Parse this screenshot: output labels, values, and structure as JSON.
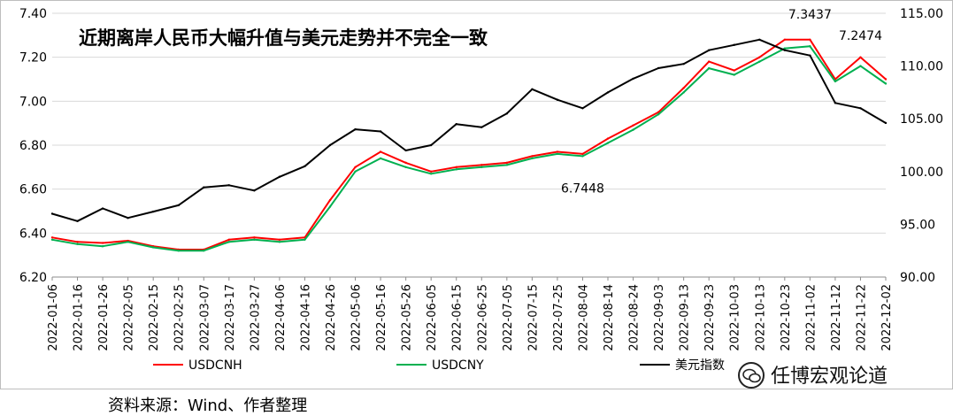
{
  "chart_data": {
    "type": "line",
    "title": "近期离岸人民币大幅升值与美元走势并不完全一致",
    "xlabel": "",
    "ylabel": "",
    "left_axis": {
      "ylim": [
        6.2,
        7.4
      ],
      "ticks": [
        "6.20",
        "6.40",
        "6.60",
        "6.80",
        "7.00",
        "7.20",
        "7.40"
      ]
    },
    "right_axis": {
      "ylim": [
        90,
        115
      ],
      "ticks": [
        "90.00",
        "95.00",
        "100.00",
        "105.00",
        "110.00",
        "115.00"
      ]
    },
    "grid": true,
    "legend_position": "bottom",
    "categories": [
      "2022-01-06",
      "2022-01-16",
      "2022-01-26",
      "2022-02-05",
      "2022-02-15",
      "2022-02-25",
      "2022-03-07",
      "2022-03-17",
      "2022-03-27",
      "2022-04-06",
      "2022-04-16",
      "2022-04-26",
      "2022-05-06",
      "2022-05-16",
      "2022-05-26",
      "2022-06-05",
      "2022-06-15",
      "2022-06-25",
      "2022-07-05",
      "2022-07-15",
      "2022-07-25",
      "2022-08-04",
      "2022-08-14",
      "2022-08-24",
      "2022-09-03",
      "2022-09-13",
      "2022-09-23",
      "2022-10-03",
      "2022-10-13",
      "2022-10-23",
      "2022-11-02",
      "2022-11-12",
      "2022-11-22",
      "2022-12-02"
    ],
    "series": [
      {
        "name": "USDCNH",
        "color": "#ff0000",
        "axis": "left",
        "values": [
          6.38,
          6.36,
          6.355,
          6.365,
          6.34,
          6.325,
          6.325,
          6.37,
          6.38,
          6.37,
          6.38,
          6.55,
          6.7,
          6.77,
          6.72,
          6.68,
          6.7,
          6.71,
          6.72,
          6.75,
          6.77,
          6.76,
          6.83,
          6.89,
          6.95,
          7.06,
          7.18,
          7.14,
          7.2,
          7.28,
          7.28,
          7.1,
          7.2,
          7.1
        ]
      },
      {
        "name": "USDCNY",
        "color": "#00b050",
        "axis": "left",
        "values": [
          6.37,
          6.35,
          6.34,
          6.36,
          6.335,
          6.32,
          6.32,
          6.36,
          6.37,
          6.36,
          6.37,
          6.52,
          6.68,
          6.74,
          6.7,
          6.67,
          6.69,
          6.7,
          6.71,
          6.74,
          6.76,
          6.75,
          6.81,
          6.87,
          6.94,
          7.04,
          7.15,
          7.12,
          7.18,
          7.24,
          7.25,
          7.09,
          7.16,
          7.08
        ]
      },
      {
        "name": "美元指数",
        "color": "#000000",
        "axis": "right",
        "values": [
          96.0,
          95.3,
          96.5,
          95.6,
          96.2,
          96.8,
          98.5,
          98.7,
          98.2,
          99.5,
          100.5,
          102.5,
          104.0,
          103.8,
          102.0,
          102.5,
          104.5,
          104.2,
          105.5,
          107.8,
          106.8,
          106.0,
          107.5,
          108.8,
          109.8,
          110.2,
          111.5,
          112.0,
          112.5,
          111.5,
          111.0,
          106.5,
          106.0,
          104.6
        ]
      }
    ],
    "annotations": [
      {
        "text": "7.3437",
        "x": "2022-11-02",
        "y": 7.3437,
        "axis": "left"
      },
      {
        "text": "7.2474",
        "x": "2022-12-02",
        "y": 7.2474,
        "axis": "left"
      },
      {
        "text": "6.7448",
        "x": "2022-08-04",
        "y": 6.7448,
        "axis": "left"
      }
    ]
  },
  "watermark": {
    "text": "任博宏观论道",
    "icon": "wechat-icon"
  },
  "source_note": "资料来源：Wind、作者整理"
}
